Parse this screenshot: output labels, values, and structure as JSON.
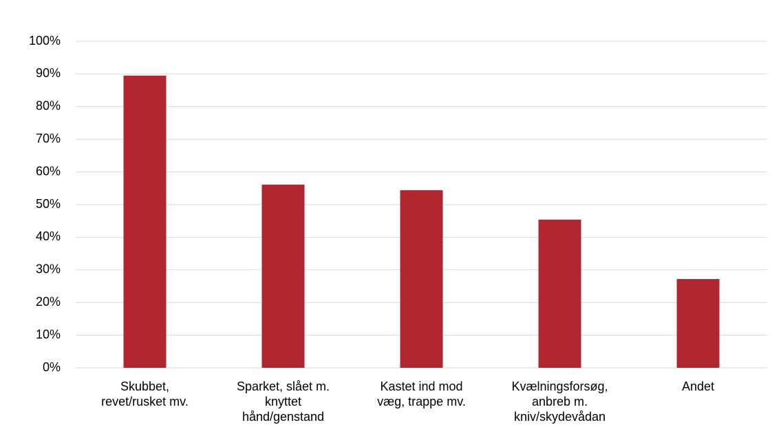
{
  "chart_data": {
    "type": "bar",
    "categories": [
      "Skubbet,\nrevet/rusket mv.",
      "Sparket, slået m.\nknyttet\nhånd/genstand",
      "Kastet ind mod\nvæg, trappe mv.",
      "Kvælningsforsøg,\nanbreb m.\nkniv/skydevådan",
      "Andet"
    ],
    "values": [
      89.5,
      56.1,
      54.4,
      45.4,
      27.2
    ],
    "color": "#b0262f",
    "ylim": [
      0,
      100
    ],
    "yticks": [
      {
        "value": 0,
        "label": "0%"
      },
      {
        "value": 10,
        "label": "10%"
      },
      {
        "value": 20,
        "label": "20%"
      },
      {
        "value": 30,
        "label": "30%"
      },
      {
        "value": 40,
        "label": "40%"
      },
      {
        "value": 50,
        "label": "50%"
      },
      {
        "value": 60,
        "label": "60%"
      },
      {
        "value": 70,
        "label": "70%"
      },
      {
        "value": 80,
        "label": "80%"
      },
      {
        "value": 90,
        "label": "90%"
      },
      {
        "value": 100,
        "label": "100%"
      }
    ],
    "grid": true
  }
}
